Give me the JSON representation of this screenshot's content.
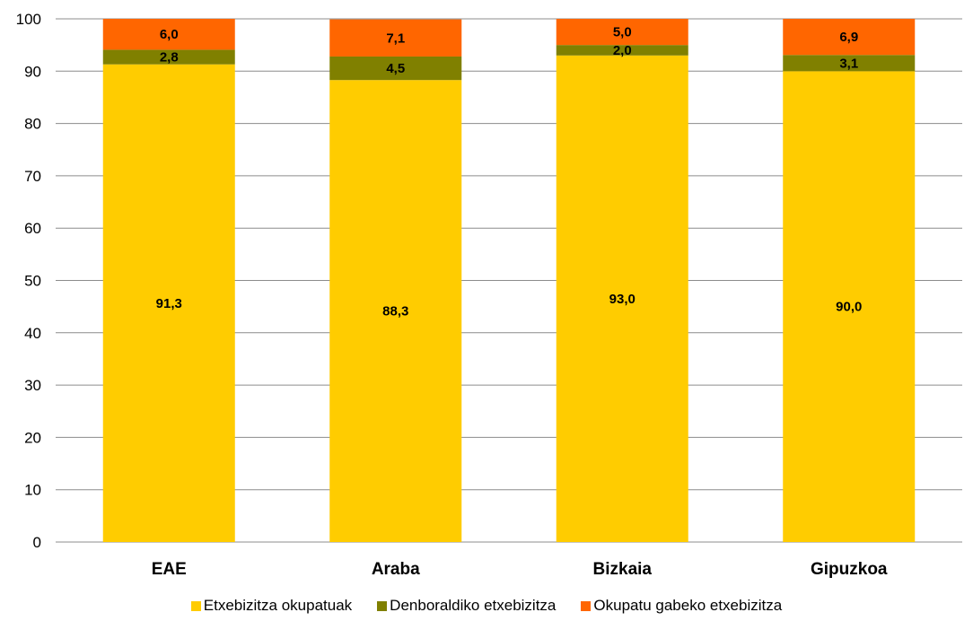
{
  "chart_data": {
    "type": "bar",
    "stacked": true,
    "categories": [
      "EAE",
      "Araba",
      "Bizkaia",
      "Gipuzkoa"
    ],
    "series": [
      {
        "name": "Etxebizitza okupatuak",
        "color": "#FFCC00",
        "values": [
          91.3,
          88.3,
          93.0,
          90.0
        ],
        "labels": [
          "91,3",
          "88,3",
          "93,0",
          "90,0"
        ]
      },
      {
        "name": "Denboraldiko etxebizitza",
        "color": "#808000",
        "values": [
          2.8,
          4.5,
          2.0,
          3.1
        ],
        "labels": [
          "2,8",
          "4,5",
          "2,0",
          "3,1"
        ]
      },
      {
        "name": "Okupatu gabeko etxebizitza",
        "color": "#FF6600",
        "values": [
          6.0,
          7.1,
          5.0,
          6.9
        ],
        "labels": [
          "6,0",
          "7,1",
          "5,0",
          "6,9"
        ]
      }
    ],
    "ylim": [
      0,
      100
    ],
    "yticks": [
      "0",
      "10",
      "20",
      "30",
      "40",
      "50",
      "60",
      "70",
      "80",
      "90",
      "100"
    ],
    "grid": true,
    "legend_position": "bottom"
  }
}
